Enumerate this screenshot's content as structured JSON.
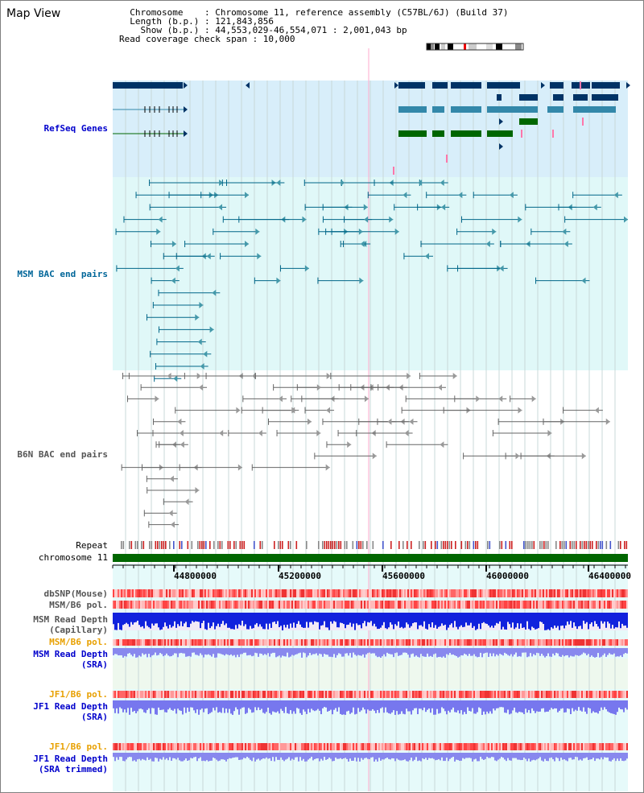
{
  "view": {
    "title": "Map View",
    "info_lines": [
      "  Chromosome    : Chromosome 11, reference assembly (C57BL/6J) (Build 37)",
      "  Length (b.p.) : 121,843,856",
      "    Show (b.p.) : 44,553,029-46,554,071 : 2,001,043 bp",
      "Read coverage check span : 10,000"
    ]
  },
  "tracks": {
    "refseq": {
      "label": "RefSeq Genes",
      "color": "#0000cc"
    },
    "msm_bac": {
      "label": "MSM BAC end pairs",
      "color": "#006699"
    },
    "b6n_bac": {
      "label": "B6N BAC end pairs",
      "color": "#555555"
    },
    "repeat": {
      "label": "Repeat"
    },
    "chromosome": {
      "label": "chromosome 11"
    },
    "dbsnp": {
      "label": "dbSNP(Mouse)"
    },
    "msm_b6_pol": {
      "label": "MSM/B6 pol."
    },
    "msm_depth_cap": {
      "label": "MSM Read Depth\n(Capillary)"
    },
    "msm_b6_pol2": {
      "label": "MSM/B6 pol."
    },
    "msm_depth_sra": {
      "label": "MSM Read Depth\n(SRA)"
    },
    "jf1_b6_pol": {
      "label": "JF1/B6 pol."
    },
    "jf1_depth_sra": {
      "label": "JF1 Read Depth\n(SRA)"
    },
    "jf1_b6_pol2": {
      "label": "JF1/B6 pol."
    },
    "jf1_depth_trim": {
      "label": "JF1 Read Depth\n(SRA trimmed)"
    }
  },
  "axis": {
    "ticks": [
      "44800000",
      "45200000",
      "45600000",
      "46000000",
      "46400000"
    ]
  },
  "colors": {
    "refseq_bg": "#d8eefa",
    "msm_bg": "#e0f8f8",
    "b6n_bg": "#ffffff",
    "lower_bg": "#e6fafa",
    "gene_dark": "#003366",
    "gene_mid": "#3388aa",
    "gene_green": "#006600",
    "chromosome": "#006600"
  }
}
